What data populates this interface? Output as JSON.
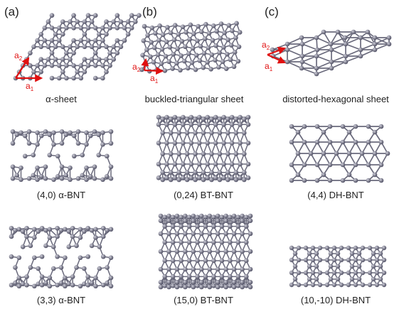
{
  "panels": [
    {
      "letter": "(a)",
      "caption": "α-sheet"
    },
    {
      "letter": "(b)",
      "caption": "buckled-triangular sheet"
    },
    {
      "letter": "(c)",
      "caption": "distorted-hexagonal sheet"
    }
  ],
  "nanotubes": [
    {
      "caption": "(4,0) α-BNT"
    },
    {
      "caption": "(0,24) BT-BNT"
    },
    {
      "caption": "(4,4) DH-BNT"
    },
    {
      "caption": "(3,3) α-BNT"
    },
    {
      "caption": "(15,0) BT-BNT"
    },
    {
      "caption": "(10,-10) DH-BNT"
    }
  ],
  "lattice_vectors": {
    "a": "a",
    "sub1": "1",
    "sub2": "2"
  },
  "colors": {
    "atom": "#7a7a8c",
    "atom_highlight": "#c8c8d6",
    "bond": "#6a6a7c",
    "vector": "#e01010"
  }
}
